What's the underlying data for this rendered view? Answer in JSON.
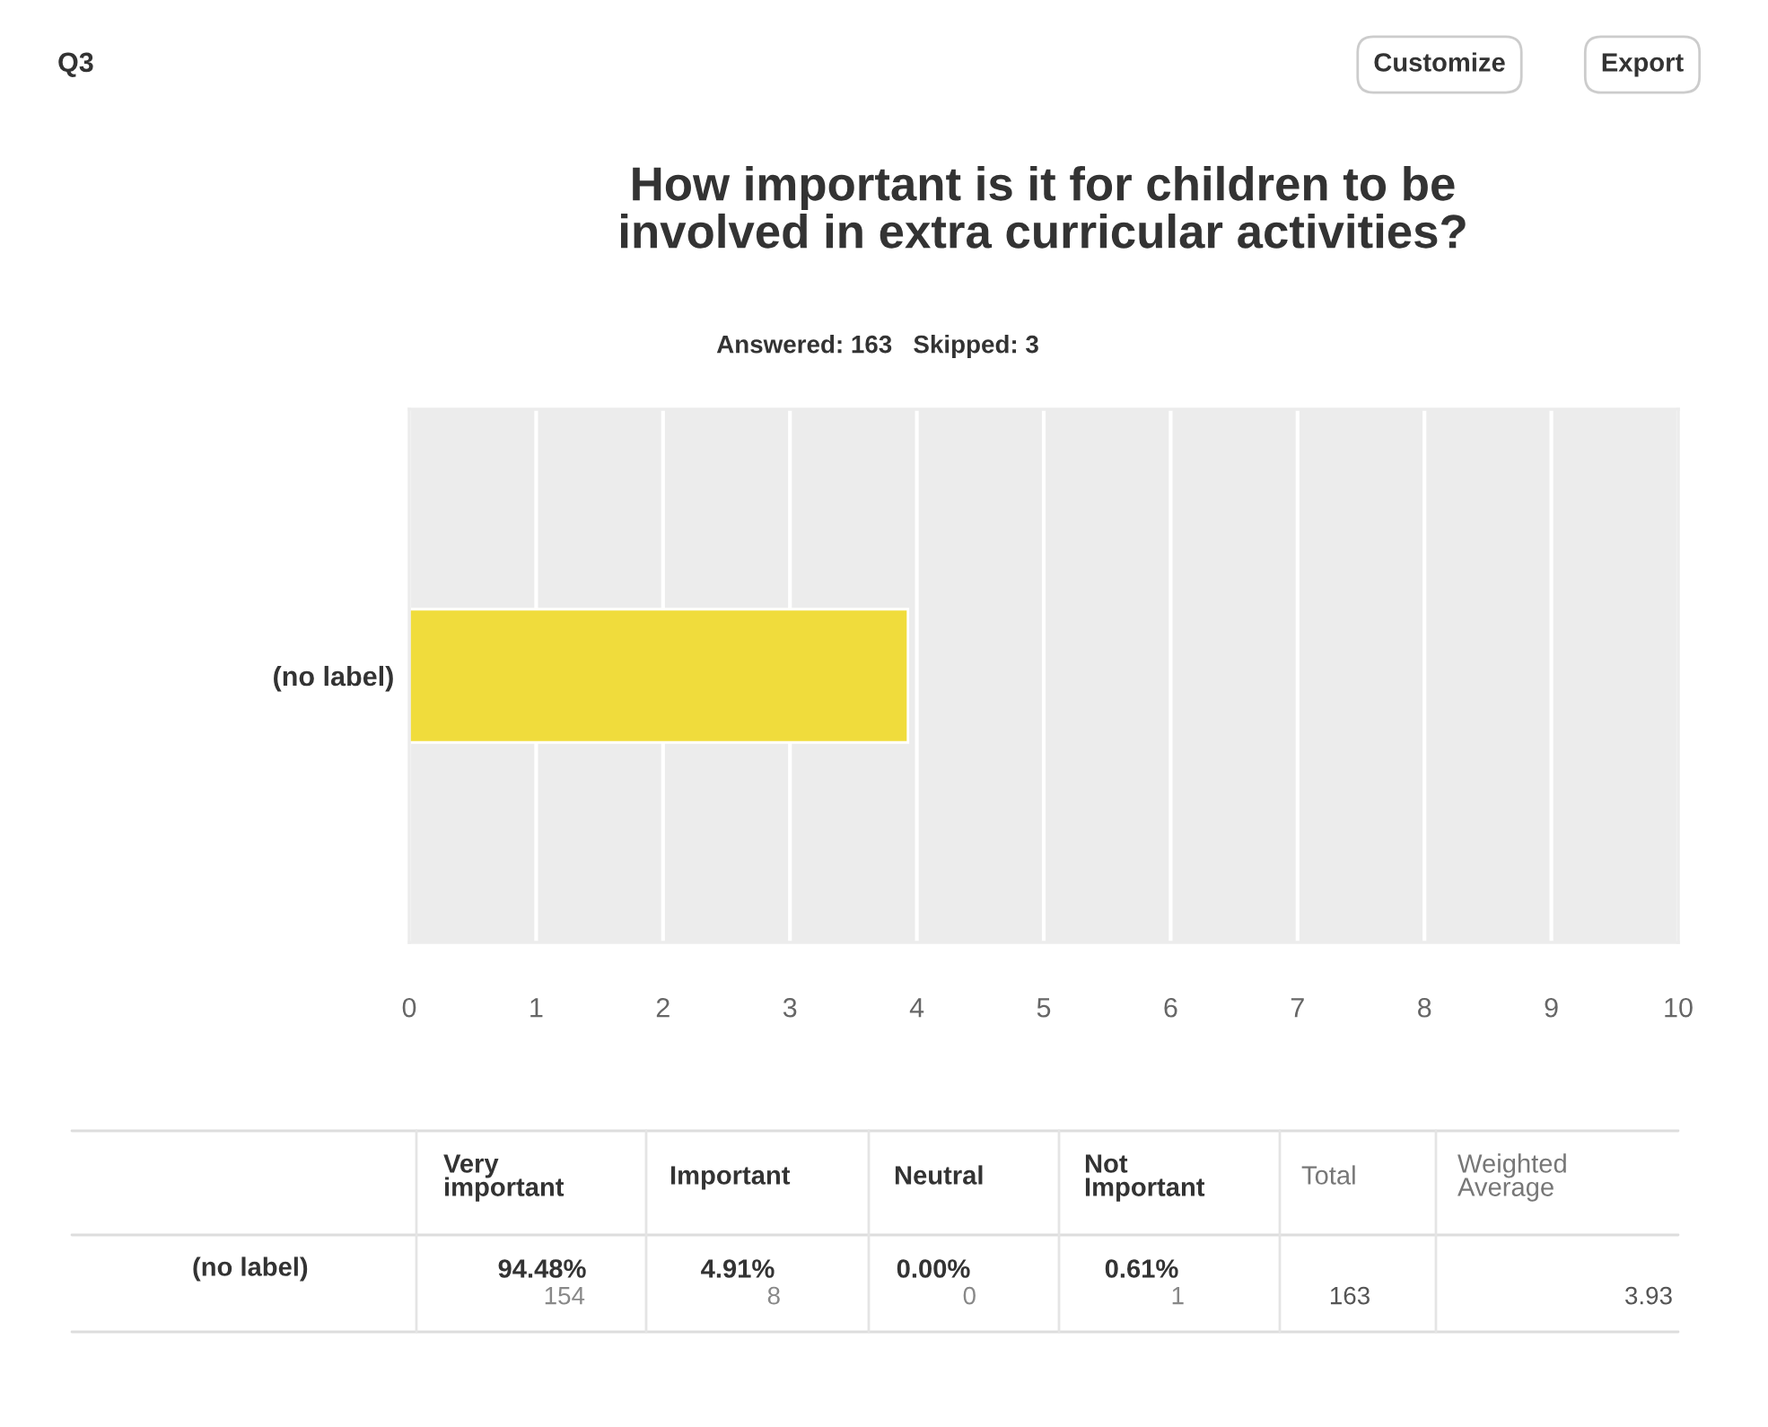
{
  "chart_data": {
    "type": "bar",
    "orientation": "horizontal",
    "title": "How important is it for children to be\ninvolved in extra curricular activities?",
    "subtitle": "Answered: 163   Skipped: 3",
    "categories": [
      "(no label)"
    ],
    "values": [
      3.93
    ],
    "color": "#f0dc3c",
    "xlim": [
      0,
      10
    ],
    "xticks": [
      0,
      1,
      2,
      3,
      4,
      5,
      6,
      7,
      8,
      9,
      10
    ],
    "grid": "x",
    "annotations": [
      "Q3",
      "Customize",
      "Export",
      "Very\nimportant",
      "Important",
      "Neutral",
      "Not\nImportant",
      "Total",
      "Weighted\nAverage",
      "94.48%",
      "154",
      "4.91%",
      "8",
      "0.00%",
      "0",
      "0.61%",
      "1",
      "163",
      "3.93"
    ]
  }
}
